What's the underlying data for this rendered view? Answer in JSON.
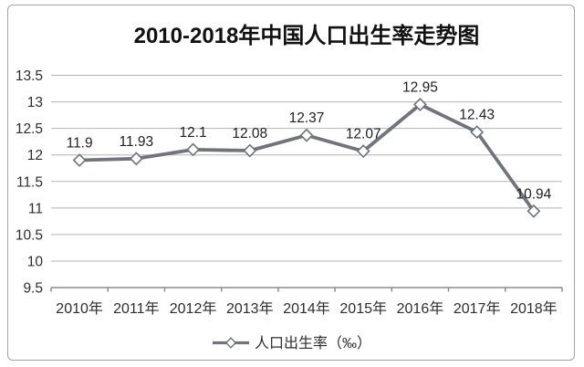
{
  "chart_data": {
    "type": "line",
    "title": "2010-2018年中国人口出生率走势图",
    "categories": [
      "2010年",
      "2011年",
      "2012年",
      "2013年",
      "2014年",
      "2015年",
      "2016年",
      "2017年",
      "2018年"
    ],
    "series": [
      {
        "name": "人口出生率（‰）",
        "values": [
          11.9,
          11.93,
          12.1,
          12.08,
          12.37,
          12.07,
          12.95,
          12.43,
          10.94
        ]
      }
    ],
    "data_labels": [
      "11.9",
      "11.93",
      "12.1",
      "12.08",
      "12.37",
      "12.07",
      "12.95",
      "12.43",
      "10.94"
    ],
    "xlabel": "",
    "ylabel": "",
    "ylim": [
      9.5,
      13.5
    ],
    "ytick_step": 0.5,
    "ytick_labels": [
      "9.5",
      "10",
      "10.5",
      "11",
      "11.5",
      "12",
      "12.5",
      "13",
      "13.5"
    ],
    "grid": true,
    "legend": {
      "label": "人口出生率（‰）",
      "position": "bottom"
    },
    "colors": {
      "line": "#70747d",
      "marker_fill": "#ffffff",
      "marker_stroke": "#6e727b",
      "gridline": "#b3b3b6",
      "axis": "#8c8c8c",
      "tick_text": "#2d2d2d",
      "data_label_text": "#1f1f1f",
      "title_text": "#111111",
      "frame_border": "#a3a3a3",
      "background": "#ffffff"
    }
  }
}
